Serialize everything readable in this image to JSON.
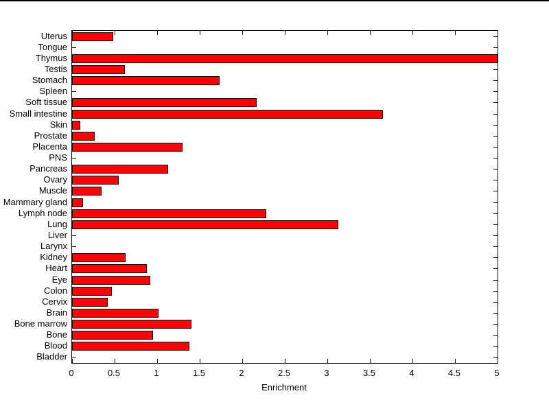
{
  "chart_data": {
    "type": "bar",
    "orientation": "horizontal",
    "title": "",
    "xlabel": "Enrichment",
    "ylabel": "",
    "xlim": [
      0,
      5
    ],
    "xticks": [
      0,
      0.5,
      1,
      1.5,
      2,
      2.5,
      3,
      3.5,
      4,
      4.5,
      5
    ],
    "xtick_labels": [
      "0",
      "0.5",
      "1",
      "1.5",
      "2",
      "2.5",
      "3",
      "3.5",
      "4",
      "4.5",
      "5"
    ],
    "category_order": "top-to-bottom",
    "categories": [
      "Uterus",
      "Tongue",
      "Thymus",
      "Testis",
      "Stomach",
      "Spleen",
      "Soft tissue",
      "Small intestine",
      "Skin",
      "Prostate",
      "Placenta",
      "PNS",
      "Pancreas",
      "Ovary",
      "Muscle",
      "Mammary gland",
      "Lymph node",
      "Lung",
      "Liver",
      "Larynx",
      "Kidney",
      "Heart",
      "Eye",
      "Colon",
      "Cervix",
      "Brain",
      "Bone marrow",
      "Bone",
      "Blood",
      "Bladder"
    ],
    "values": [
      0.48,
      0,
      5.0,
      0.62,
      1.73,
      0,
      2.17,
      3.65,
      0.1,
      0.27,
      1.3,
      0,
      1.13,
      0.55,
      0.35,
      0.13,
      2.28,
      3.13,
      0,
      0,
      0.63,
      0.88,
      0.92,
      0.47,
      0.42,
      1.02,
      1.4,
      0.95,
      1.38,
      0
    ],
    "bar_color": "#ff0000",
    "bar_edge_color": "#000000",
    "axis_color": "#000000",
    "background_color": "#ffffff",
    "grid": false,
    "legend": null
  }
}
